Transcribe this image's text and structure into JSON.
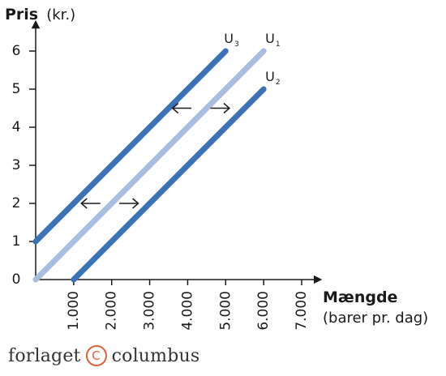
{
  "chart_data": {
    "type": "line",
    "y_title_bold": "Pris",
    "y_title_unit": "(kr.)",
    "x_title_bold": "Mængde",
    "x_title_unit": "(barer pr. dag)",
    "x_ticks": [
      1000,
      2000,
      3000,
      4000,
      5000,
      6000,
      7000
    ],
    "x_tick_labels": [
      "1.000",
      "2.000",
      "3.000",
      "4.000",
      "5.000",
      "6.000",
      "7.000"
    ],
    "y_ticks": [
      0,
      1,
      2,
      3,
      4,
      5,
      6
    ],
    "y_tick_labels": [
      "0",
      "1",
      "2",
      "3",
      "4",
      "5",
      "6"
    ],
    "xlim": [
      0,
      7000
    ],
    "ylim": [
      0,
      6
    ],
    "grid": false,
    "series": [
      {
        "name": "U3",
        "label_main": "U",
        "label_sub": "3",
        "color": "#3c72b8",
        "x": [
          0,
          5000
        ],
        "y": [
          1,
          6
        ]
      },
      {
        "name": "U1",
        "label_main": "U",
        "label_sub": "1",
        "color": "#a9bde3",
        "x": [
          0,
          6000
        ],
        "y": [
          0,
          6
        ]
      },
      {
        "name": "U2",
        "label_main": "U",
        "label_sub": "2",
        "color": "#3c72b8",
        "x": [
          1000,
          6000
        ],
        "y": [
          0,
          5
        ]
      }
    ],
    "arrows": [
      {
        "direction": "left",
        "x": [
          1200,
          1700
        ],
        "y": 2
      },
      {
        "direction": "right",
        "x": [
          2200,
          2700
        ],
        "y": 2
      },
      {
        "direction": "left",
        "x": [
          3600,
          4100
        ],
        "y": 4.5
      },
      {
        "direction": "right",
        "x": [
          4600,
          5100
        ],
        "y": 4.5
      }
    ]
  },
  "publisher": {
    "name_left": "forlaget",
    "logo_letter": "C",
    "name_right": "columbus"
  }
}
